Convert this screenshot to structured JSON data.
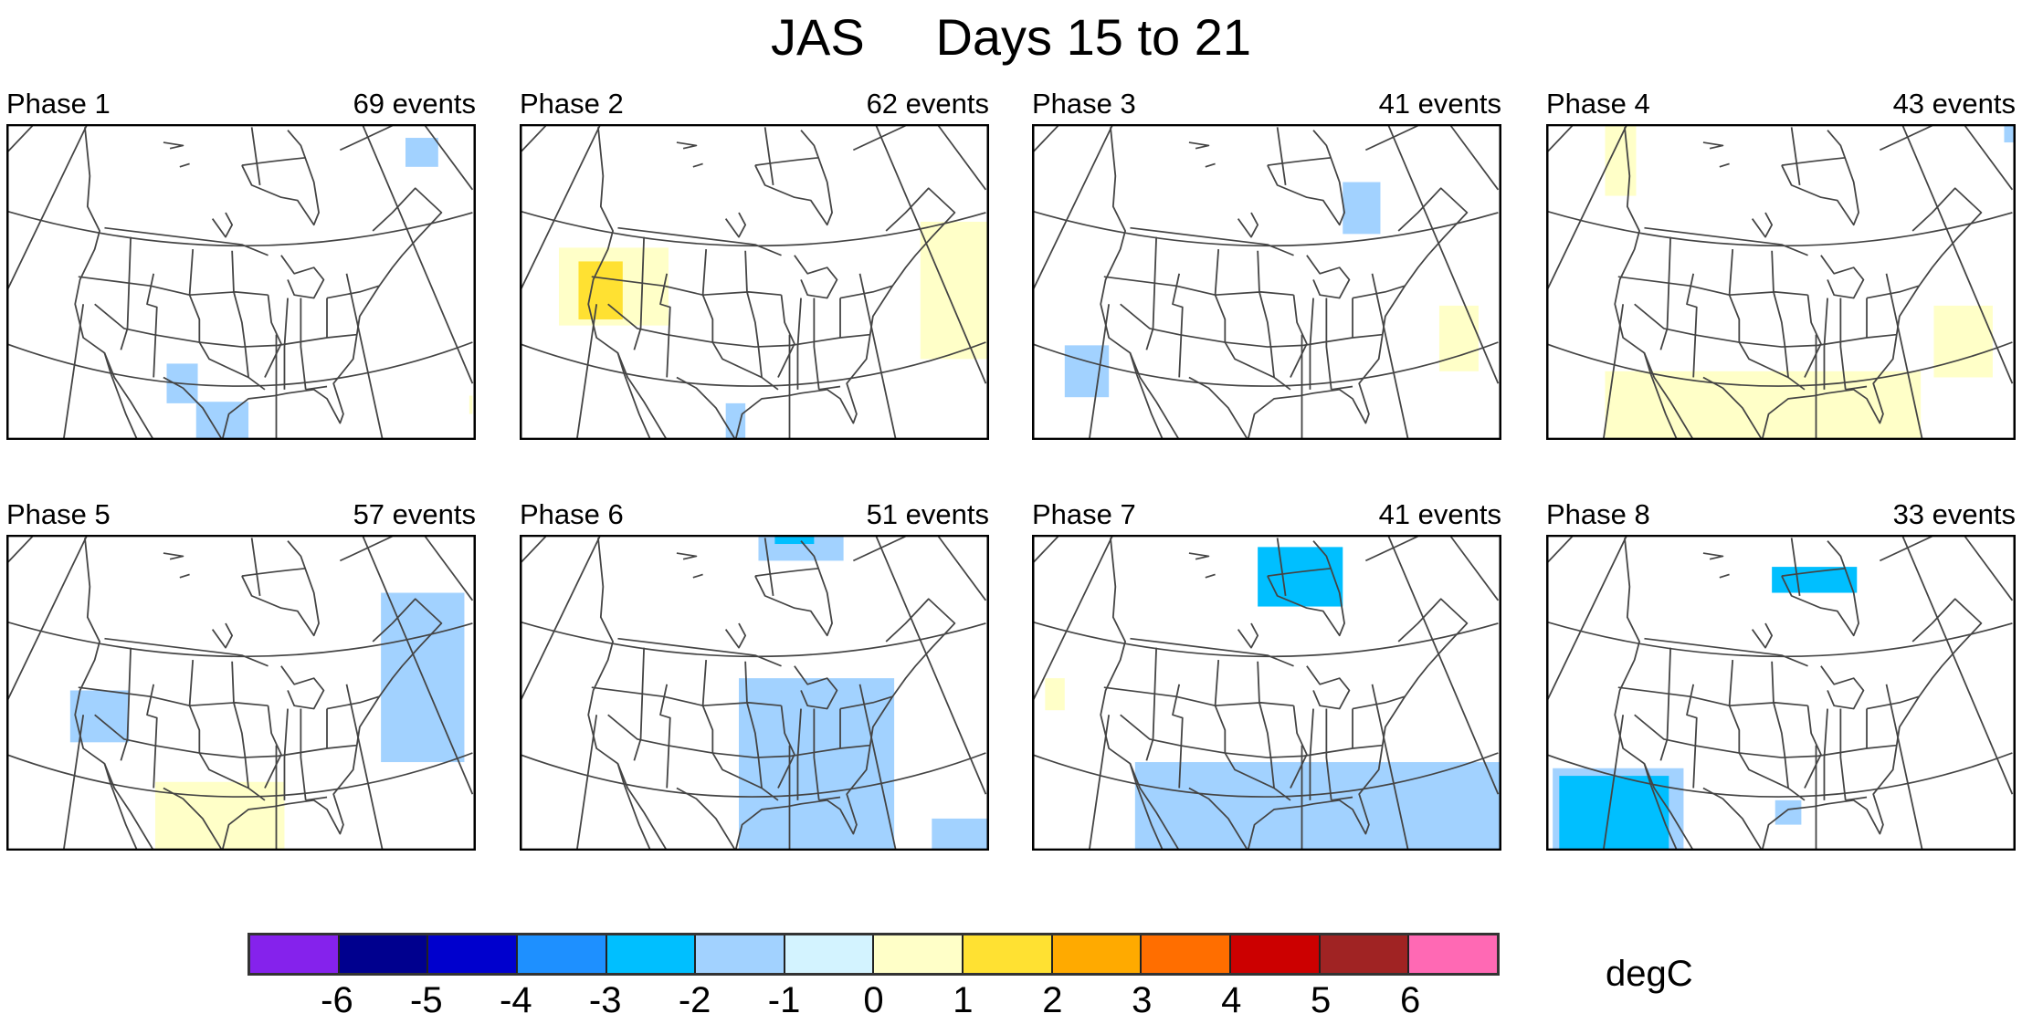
{
  "chart_data": {
    "type": "heatmap",
    "title": "JAS     Days 15 to 21",
    "units": "degC",
    "panels": [
      {
        "phase": "Phase 1",
        "events": "69 events",
        "anomaly_values_present": [
          -1,
          1
        ]
      },
      {
        "phase": "Phase 2",
        "events": "62 events",
        "anomaly_values_present": [
          1,
          2,
          -1
        ]
      },
      {
        "phase": "Phase 3",
        "events": "41 events",
        "anomaly_values_present": [
          -1,
          1
        ]
      },
      {
        "phase": "Phase 4",
        "events": "43 events",
        "anomaly_values_present": [
          1,
          -1
        ]
      },
      {
        "phase": "Phase 5",
        "events": "57 events",
        "anomaly_values_present": [
          -1,
          1
        ]
      },
      {
        "phase": "Phase 6",
        "events": "51 events",
        "anomaly_values_present": [
          -1,
          -2
        ]
      },
      {
        "phase": "Phase 7",
        "events": "41 events",
        "anomaly_values_present": [
          -2,
          -1,
          1
        ]
      },
      {
        "phase": "Phase 8",
        "events": "33 events",
        "anomaly_values_present": [
          -2,
          -1
        ]
      }
    ],
    "colorbar": {
      "ticks": [
        "-6",
        "-5",
        "-4",
        "-3",
        "-2",
        "-1",
        "0",
        "1",
        "2",
        "3",
        "4",
        "5",
        "6"
      ],
      "colors": [
        "#8522ec",
        "#00008e",
        "#0000cd",
        "#1e90ff",
        "#00bfff",
        "#a2d2ff",
        "#d3f3ff",
        "#ffffc8",
        "#ffe132",
        "#ffaa00",
        "#ff6e00",
        "#cc0000",
        "#a02323",
        "#ff69b4"
      ]
    }
  }
}
